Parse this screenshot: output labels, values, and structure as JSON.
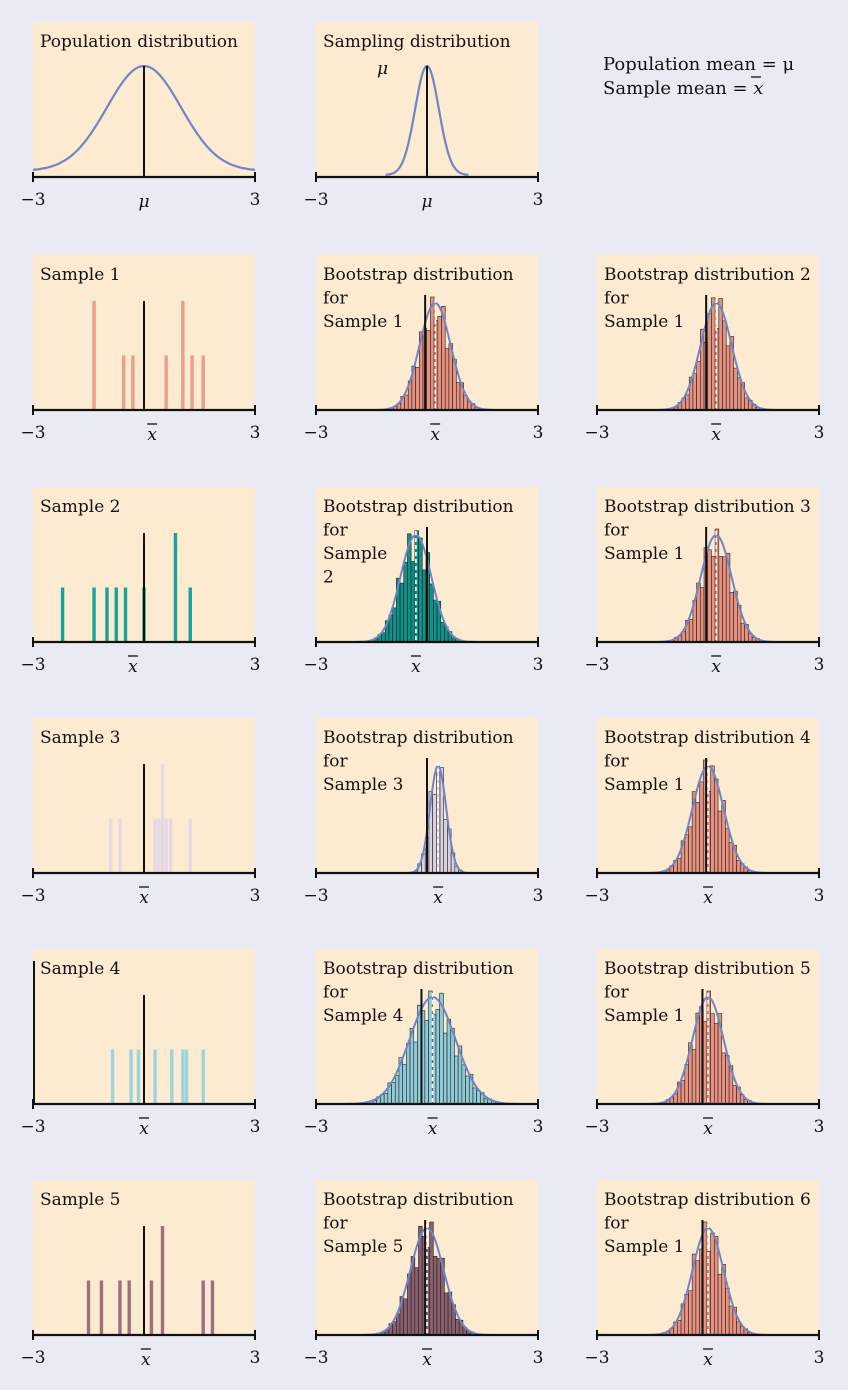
{
  "colors": {
    "background": "#e9eaf3",
    "panel": "#fdebd1",
    "curve": "#6f86c6",
    "axis": "#111111"
  },
  "legend": {
    "line1": "Population mean = μ",
    "line2_prefix": "Sample mean = ",
    "line2_symbol": "x"
  },
  "symbols": {
    "mu": "μ",
    "xbar": "x"
  },
  "chart_data": [
    {
      "type": "line",
      "id": "population",
      "title": "Population distribution",
      "xlim": [
        -3,
        3
      ],
      "ticks": [
        "−3",
        "3"
      ],
      "center_label": "μ",
      "mean": 0,
      "sd": 1,
      "color": "#6f86c6"
    },
    {
      "type": "line",
      "id": "sampling",
      "title": "Sampling distribution",
      "xlim": [
        -3,
        3
      ],
      "ticks": [
        "−3",
        "3"
      ],
      "center_label": "μ",
      "peak_label": "μ",
      "mean": 0,
      "sd": 0.32,
      "color": "#6f86c6"
    },
    {
      "type": "bar",
      "id": "sample1",
      "title": "Sample 1",
      "xlim": [
        -3,
        3
      ],
      "ticks": [
        "−3",
        "3"
      ],
      "center_label": "x",
      "xbar": 0.22,
      "color": "#ea9e8c",
      "points": [
        -1.35,
        -0.55,
        -0.3,
        0.6,
        1.05,
        1.3,
        1.6
      ],
      "heights": [
        2,
        1,
        1,
        1,
        2,
        1,
        1
      ]
    },
    {
      "type": "bar",
      "id": "boot_s1",
      "title": [
        "Bootstrap distribution",
        "for",
        "Sample 1"
      ],
      "xlim": [
        -3,
        3
      ],
      "ticks": [
        "−3",
        "3"
      ],
      "center_label": "x",
      "mean": 0.22,
      "sd": 0.42,
      "color": "#e8917e",
      "ref": -0.05
    },
    {
      "type": "bar",
      "id": "boot2_s1",
      "title": [
        "Bootstrap distribution 2",
        "for",
        "Sample 1"
      ],
      "xlim": [
        -3,
        3
      ],
      "ticks": [
        "−3",
        "3"
      ],
      "center_label": "x",
      "mean": 0.22,
      "sd": 0.42,
      "color": "#e8917e",
      "ref": -0.05
    },
    {
      "type": "bar",
      "id": "sample2",
      "title": "Sample 2",
      "xlim": [
        -3,
        3
      ],
      "ticks": [
        "−3",
        "3"
      ],
      "center_label": "x",
      "xbar": -0.3,
      "color": "#18a39a",
      "points": [
        -2.2,
        -1.35,
        -1.0,
        -0.75,
        -0.5,
        0.0,
        0.85,
        1.25
      ],
      "heights": [
        1,
        1,
        1,
        1,
        1,
        1,
        2,
        1
      ]
    },
    {
      "type": "bar",
      "id": "boot_s2",
      "title": [
        "Bootstrap distribution",
        "for",
        "Sample",
        "2"
      ],
      "xlim": [
        -3,
        3
      ],
      "ticks": [
        "−3",
        "3"
      ],
      "center_label": "x",
      "mean": -0.3,
      "sd": 0.42,
      "color": "#0e9188",
      "ref": 0.0
    },
    {
      "type": "bar",
      "id": "boot3_s1",
      "title": [
        "Bootstrap distribution 3",
        "for",
        "Sample 1"
      ],
      "xlim": [
        -3,
        3
      ],
      "ticks": [
        "−3",
        "3"
      ],
      "center_label": "x",
      "mean": 0.22,
      "sd": 0.42,
      "color": "#e8917e",
      "ref": -0.05
    },
    {
      "type": "bar",
      "id": "sample3",
      "title": "Sample 3",
      "xlim": [
        -3,
        3
      ],
      "ticks": [
        "−3",
        "3"
      ],
      "center_label": "x",
      "xbar": 0.0,
      "color": "#e6d9e3",
      "points": [
        -0.9,
        -0.65,
        0.3,
        0.4,
        0.5,
        0.6,
        0.72,
        1.25
      ],
      "heights": [
        1,
        1,
        1,
        1,
        2,
        1,
        1,
        1
      ]
    },
    {
      "type": "bar",
      "id": "boot_s3",
      "title": [
        "Bootstrap distribution",
        "for",
        "Sample 3"
      ],
      "xlim": [
        -3,
        3
      ],
      "ticks": [
        "−3",
        "3"
      ],
      "center_label": "x",
      "mean": 0.3,
      "sd": 0.22,
      "color": "#dad0df",
      "ref": 0.0
    },
    {
      "type": "bar",
      "id": "boot4_s1",
      "title": [
        "Bootstrap distribution 4",
        "for",
        "Sample 1"
      ],
      "xlim": [
        -3,
        3
      ],
      "ticks": [
        "−3",
        "3"
      ],
      "center_label": "x",
      "mean": 0.0,
      "sd": 0.42,
      "color": "#e8917e",
      "ref": -0.05
    },
    {
      "type": "bar",
      "id": "sample4",
      "title": "Sample 4",
      "xlim": [
        -3,
        3
      ],
      "ticks": [
        "−3",
        "3"
      ],
      "center_label": "x",
      "xbar": 0.0,
      "color": "#9dd3dd",
      "points": [
        -0.85,
        -0.35,
        -0.15,
        0.3,
        0.75,
        1.05,
        1.15,
        1.6
      ],
      "heights": [
        1,
        1,
        1,
        1,
        1,
        1,
        1,
        1
      ]
    },
    {
      "type": "bar",
      "id": "boot_s4",
      "title": [
        "Bootstrap distribution",
        "for",
        "Sample 4"
      ],
      "xlim": [
        -3,
        3
      ],
      "ticks": [
        "−3",
        "3"
      ],
      "center_label": "x",
      "mean": 0.15,
      "sd": 0.62,
      "color": "#8ecbd6",
      "ref": -0.15
    },
    {
      "type": "bar",
      "id": "boot5_s1",
      "title": [
        "Bootstrap distribution 5",
        "for",
        "Sample 1"
      ],
      "xlim": [
        -3,
        3
      ],
      "ticks": [
        "−3",
        "3"
      ],
      "center_label": "x",
      "mean": 0.0,
      "sd": 0.42,
      "color": "#e8917e",
      "ref": -0.15
    },
    {
      "type": "bar",
      "id": "sample5",
      "title": "Sample 5",
      "xlim": [
        -3,
        3
      ],
      "ticks": [
        "−3",
        "3"
      ],
      "center_label": "x",
      "xbar": 0.05,
      "color": "#9c707e",
      "points": [
        -1.5,
        -1.15,
        -0.65,
        -0.4,
        0.2,
        0.5,
        1.6,
        1.85
      ],
      "heights": [
        1,
        1,
        1,
        1,
        1,
        2,
        1,
        1
      ]
    },
    {
      "type": "bar",
      "id": "boot_s5",
      "title": [
        "Bootstrap distribution",
        "for",
        "Sample 5"
      ],
      "xlim": [
        -3,
        3
      ],
      "ticks": [
        "−3",
        "3"
      ],
      "center_label": "x",
      "mean": 0.0,
      "sd": 0.45,
      "color": "#8a5f6d",
      "ref": -0.05
    },
    {
      "type": "bar",
      "id": "boot6_s1",
      "title": [
        "Bootstrap distribution 6",
        "for",
        "Sample 1"
      ],
      "xlim": [
        -3,
        3
      ],
      "ticks": [
        "−3",
        "3"
      ],
      "center_label": "x",
      "mean": 0.0,
      "sd": 0.42,
      "color": "#e8917e",
      "ref": -0.15
    }
  ]
}
